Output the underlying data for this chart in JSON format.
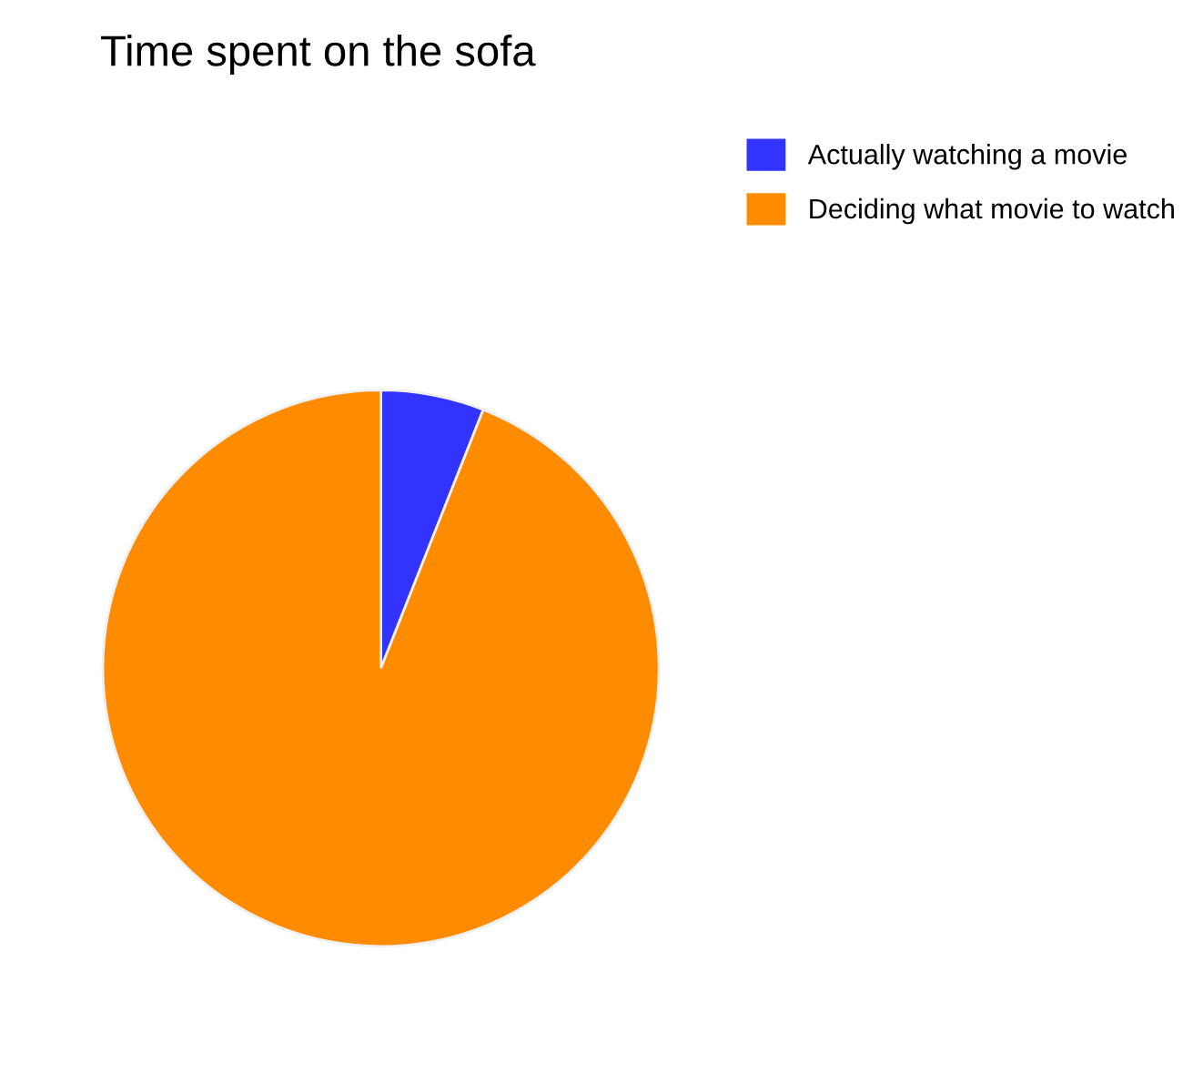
{
  "chart_data": {
    "type": "pie",
    "title": "Time spent on the sofa",
    "categories": [
      "Actually watching a movie",
      "Deciding what movie to watch"
    ],
    "values": [
      6,
      94
    ],
    "colors": [
      "#3333ff",
      "#ff8c00"
    ],
    "legend": "top right"
  }
}
